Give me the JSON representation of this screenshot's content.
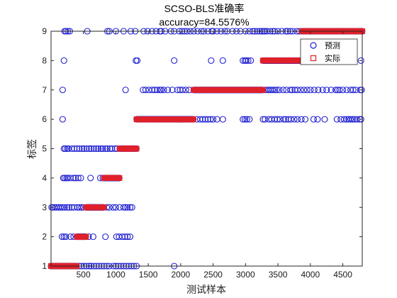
{
  "chart_data": {
    "type": "scatter",
    "title": "SCSO-BLS准确率",
    "subtitle": "accuracy=84.5576%",
    "xlabel": "测试样本",
    "ylabel": "标签",
    "xlim": [
      1,
      4800
    ],
    "ylim": [
      1,
      9
    ],
    "xticks": [
      500,
      1000,
      1500,
      2000,
      2500,
      3000,
      3500,
      4000,
      4500
    ],
    "yticks": [
      1,
      2,
      3,
      4,
      5,
      6,
      7,
      8,
      9
    ],
    "grid": false,
    "legend_position": "top-right",
    "colors": {
      "predicted": "#1f1fd0",
      "actual": "#e0202a"
    },
    "legend": [
      {
        "name": "预测",
        "marker": "circle",
        "color": "#1f1fd0"
      },
      {
        "name": "实际",
        "marker": "square",
        "color": "#e0202a"
      }
    ],
    "actual_segments": [
      {
        "label": 1,
        "x_from": 1,
        "x_to": 400
      },
      {
        "label": 2,
        "x_from": 401,
        "x_to": 540
      },
      {
        "label": 3,
        "x_from": 541,
        "x_to": 820
      },
      {
        "label": 4,
        "x_from": 821,
        "x_to": 1060
      },
      {
        "label": 5,
        "x_from": 1061,
        "x_to": 1320
      },
      {
        "label": 6,
        "x_from": 1321,
        "x_to": 2200
      },
      {
        "label": 7,
        "x_from": 2201,
        "x_to": 3270
      },
      {
        "label": 8,
        "x_from": 3271,
        "x_to": 3870
      },
      {
        "label": 9,
        "x_from": 3871,
        "x_to": 4800
      }
    ],
    "predicted_outliers": [
      {
        "label": 9,
        "x": [
          210,
          230,
          260,
          290,
          560,
          870,
          900,
          1000,
          1120,
          1230,
          1300,
          1430,
          1490,
          1560,
          1620,
          1680,
          1700,
          1760,
          1850,
          1900,
          1980,
          2020,
          2060,
          2100,
          2150,
          2200,
          2260,
          2320,
          2360,
          2420,
          2480,
          2500,
          2560,
          2620,
          2680,
          2720,
          2800,
          2860,
          2920,
          3000,
          3060,
          3110,
          3140,
          3180,
          3220,
          3250,
          3280,
          3300,
          3330,
          3380,
          3420,
          3450,
          3500,
          3560,
          3620,
          3650,
          3690,
          3730,
          3790,
          3830
        ]
      },
      {
        "label": 8,
        "x": [
          200,
          1310,
          1330,
          1900,
          2470,
          2650,
          2960,
          2990,
          3010,
          3040,
          3080,
          4780
        ]
      },
      {
        "label": 7,
        "x": [
          180,
          1150,
          1420,
          1460,
          1510,
          1560,
          1600,
          1640,
          1680,
          1700,
          1740,
          1800,
          1870,
          1950,
          1990,
          2030,
          2080,
          2130,
          3300,
          3330,
          3360,
          3390,
          3420,
          3450,
          3480,
          3520,
          3580,
          3630,
          3690,
          3720,
          3760,
          3800,
          3850,
          3900,
          3950,
          4000,
          4060,
          4120,
          4190,
          4250,
          4320,
          4390,
          4420,
          4450,
          4500,
          4560,
          4620,
          4660,
          4700,
          4770,
          4790
        ]
      },
      {
        "label": 6,
        "x": [
          180,
          2250,
          2300,
          2340,
          2380,
          2420,
          2460,
          2500,
          2560,
          2650,
          2960,
          2990,
          3020,
          3060,
          3270,
          3300,
          3360,
          3400,
          3450,
          3490,
          3530,
          3590,
          3620,
          3660,
          3700,
          3750,
          3800,
          3860,
          3920,
          4050,
          4110,
          4220,
          4410,
          4470,
          4520,
          4560,
          4590,
          4620,
          4650,
          4680,
          4720,
          4760,
          4780
        ]
      },
      {
        "label": 5,
        "x": [
          200,
          220,
          250,
          270,
          320,
          360,
          400,
          440,
          480,
          510,
          550,
          590,
          620,
          660,
          700,
          730,
          770,
          800,
          840,
          870,
          910,
          940,
          990,
          1020
        ]
      },
      {
        "label": 4,
        "x": [
          190,
          210,
          240,
          260,
          300,
          350,
          380,
          420,
          460,
          610,
          760,
          800
        ]
      },
      {
        "label": 3,
        "x": [
          10,
          30,
          60,
          90,
          120,
          150,
          180,
          210,
          250,
          280,
          320,
          360,
          410,
          440,
          470,
          500,
          860,
          900,
          960,
          1000,
          1060,
          1120,
          1150,
          1180,
          1220,
          1250
        ]
      },
      {
        "label": 2,
        "x": [
          170,
          200,
          230,
          300,
          350,
          400,
          580,
          650,
          840,
          1010,
          1050,
          1100,
          1140,
          1180,
          1220
        ]
      },
      {
        "label": 1,
        "x": [
          430,
          470,
          510,
          550,
          590,
          620,
          660,
          700,
          740,
          780,
          820,
          860,
          900,
          960,
          1000,
          1040,
          1080,
          1120,
          1160,
          1200,
          1240,
          1280,
          1320,
          1900
        ]
      }
    ]
  }
}
